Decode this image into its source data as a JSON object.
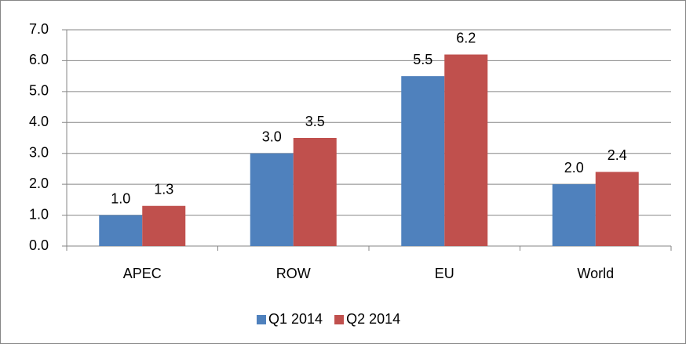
{
  "chart_data": {
    "type": "bar",
    "categories": [
      "APEC",
      "ROW",
      "EU",
      "World"
    ],
    "series": [
      {
        "name": "Q1 2014",
        "color": "#4f81bd",
        "values": [
          1.0,
          3.0,
          5.5,
          2.0
        ],
        "value_labels": [
          "1.0",
          "3.0",
          "5.5",
          "2.0"
        ]
      },
      {
        "name": "Q2 2014",
        "color": "#c0504d",
        "values": [
          1.3,
          3.5,
          6.2,
          2.4
        ],
        "value_labels": [
          "1.3",
          "3.5",
          "6.2",
          "2.4"
        ]
      }
    ],
    "ylim": [
      0,
      7
    ],
    "yticks": [
      {
        "value": 0,
        "label": "0.0"
      },
      {
        "value": 1,
        "label": "1.0"
      },
      {
        "value": 2,
        "label": "2.0"
      },
      {
        "value": 3,
        "label": "3.0"
      },
      {
        "value": 4,
        "label": "4.0"
      },
      {
        "value": 5,
        "label": "5.0"
      },
      {
        "value": 6,
        "label": "6.0"
      },
      {
        "value": 7,
        "label": "7.0"
      }
    ],
    "grid": true,
    "legend": "bottom"
  }
}
